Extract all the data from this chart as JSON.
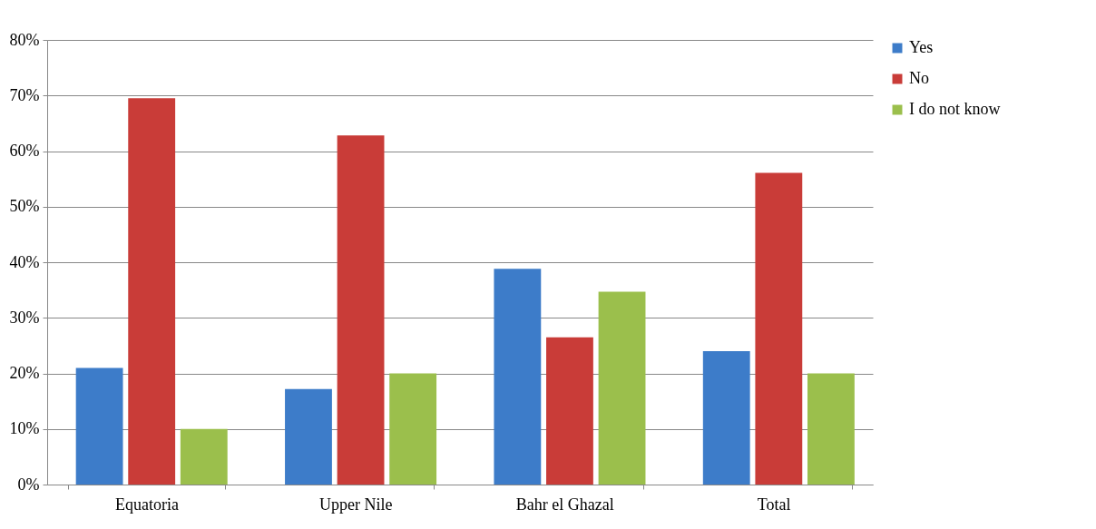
{
  "chart_data": {
    "type": "bar",
    "categories": [
      "Equatoria",
      "Upper Nile",
      "Bahr el Ghazal",
      "Total"
    ],
    "series": [
      {
        "name": "Yes",
        "color": "#3d7cc9",
        "values": [
          21,
          17.2,
          38.8,
          24
        ]
      },
      {
        "name": "No",
        "color": "#c93c38",
        "values": [
          69.5,
          62.8,
          26.5,
          56.1
        ]
      },
      {
        "name": "I do not know",
        "color": "#9bbf4c",
        "values": [
          10,
          20,
          34.7,
          20
        ]
      }
    ],
    "ylim": [
      0,
      80
    ],
    "yticks": [
      {
        "value": 0,
        "label": "0%"
      },
      {
        "value": 10,
        "label": "10%"
      },
      {
        "value": 20,
        "label": "20%"
      },
      {
        "value": 30,
        "label": "30%"
      },
      {
        "value": 40,
        "label": "40%"
      },
      {
        "value": 50,
        "label": "50%"
      },
      {
        "value": 60,
        "label": "60%"
      },
      {
        "value": 70,
        "label": "70%"
      },
      {
        "value": 80,
        "label": "80%"
      }
    ],
    "grid": "y",
    "legend": "right"
  }
}
